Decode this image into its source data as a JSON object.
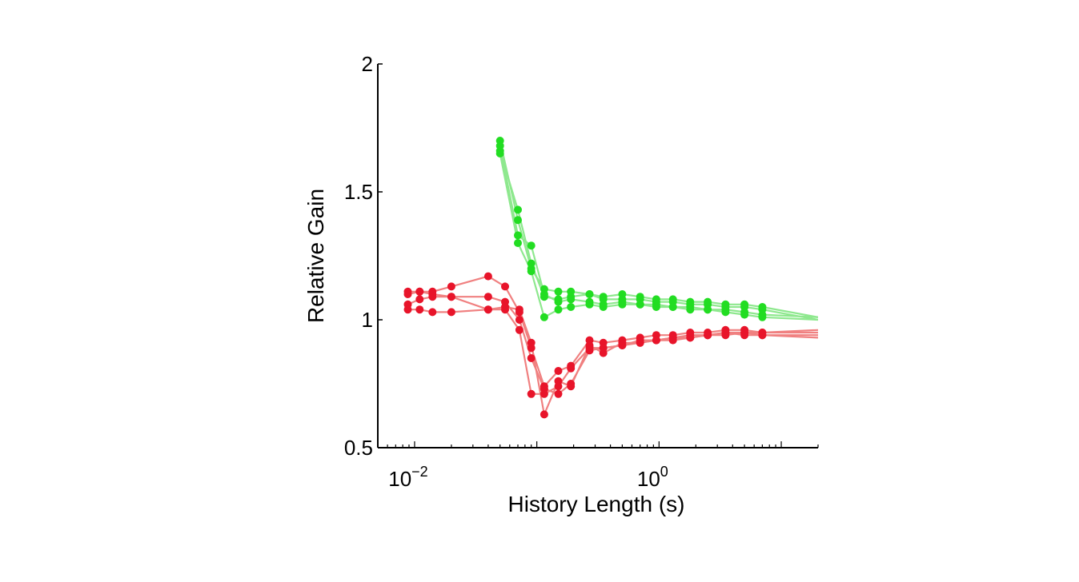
{
  "chart_data": {
    "type": "line",
    "xlabel": "History Length (s)",
    "ylabel": "Relative Gain",
    "xscale": "log",
    "xlim": [
      0.005,
      20
    ],
    "ylim": [
      0.5,
      2
    ],
    "yticks": [
      {
        "value": 0.5,
        "label": "0.5"
      },
      {
        "value": 1,
        "label": "1"
      },
      {
        "value": 1.5,
        "label": "1.5"
      },
      {
        "value": 2,
        "label": "2"
      }
    ],
    "xticks": [
      {
        "value": 0.01,
        "base": "10",
        "exp": "−2"
      },
      {
        "value": 1,
        "base": "10",
        "exp": "0"
      }
    ],
    "colors": {
      "red_line": "#f08080",
      "red_marker": "#e8142a",
      "green_line": "#8ee88e",
      "green_marker": "#22dd22"
    },
    "series": [
      {
        "group": "red",
        "x": [
          0.0088,
          0.011,
          0.014,
          0.02,
          0.04,
          0.055,
          0.072,
          0.09,
          0.115,
          0.15,
          0.19,
          0.27,
          0.35,
          0.5,
          0.7,
          0.95,
          1.3,
          1.8,
          2.5,
          3.5,
          5.0,
          7.0,
          20
        ],
        "y": [
          1.11,
          1.11,
          1.11,
          1.13,
          1.17,
          1.13,
          1.03,
          0.89,
          0.74,
          0.8,
          0.82,
          0.92,
          0.91,
          0.92,
          0.93,
          0.94,
          0.94,
          0.95,
          0.95,
          0.96,
          0.96,
          0.95,
          0.95
        ]
      },
      {
        "group": "red",
        "x": [
          0.0088,
          0.011,
          0.014,
          0.02,
          0.04,
          0.055,
          0.072,
          0.09,
          0.115,
          0.15,
          0.19,
          0.27,
          0.35,
          0.5,
          0.7,
          0.95,
          1.3,
          1.8,
          2.5,
          3.5,
          5.0,
          7.0,
          20
        ],
        "y": [
          1.1,
          1.11,
          1.1,
          1.09,
          1.09,
          1.07,
          1.0,
          0.85,
          0.73,
          0.71,
          0.75,
          0.88,
          0.89,
          0.9,
          0.91,
          0.92,
          0.93,
          0.93,
          0.94,
          0.95,
          0.95,
          0.94,
          0.94
        ]
      },
      {
        "group": "red",
        "x": [
          0.0088,
          0.011,
          0.014,
          0.02,
          0.04,
          0.055,
          0.072,
          0.09,
          0.115,
          0.15,
          0.19,
          0.27,
          0.35,
          0.5,
          0.7,
          0.95,
          1.3,
          1.8,
          2.5,
          3.5,
          5.0,
          7.0,
          20
        ],
        "y": [
          1.06,
          1.08,
          1.09,
          1.09,
          1.04,
          1.05,
          1.04,
          0.91,
          0.63,
          0.76,
          0.74,
          0.9,
          0.87,
          0.91,
          0.91,
          0.92,
          0.92,
          0.93,
          0.94,
          0.94,
          0.95,
          0.95,
          0.96
        ]
      },
      {
        "group": "red",
        "x": [
          0.0088,
          0.011,
          0.014,
          0.02,
          0.04,
          0.055,
          0.072,
          0.09,
          0.115,
          0.15,
          0.19,
          0.27,
          0.35,
          0.5,
          0.7,
          0.95,
          1.3,
          1.8,
          2.5,
          3.5,
          5.0,
          7.0,
          20
        ],
        "y": [
          1.04,
          1.04,
          1.03,
          1.03,
          1.04,
          1.04,
          0.96,
          0.71,
          0.71,
          0.74,
          0.81,
          0.89,
          0.89,
          0.9,
          0.92,
          0.92,
          0.93,
          0.94,
          0.94,
          0.95,
          0.94,
          0.94,
          0.93
        ]
      },
      {
        "group": "green",
        "x": [
          0.05,
          0.07,
          0.09,
          0.115,
          0.15,
          0.19,
          0.27,
          0.35,
          0.5,
          0.7,
          0.95,
          1.3,
          1.8,
          2.5,
          3.5,
          5.0,
          7.0,
          20
        ],
        "y": [
          1.66,
          1.43,
          1.22,
          1.09,
          1.08,
          1.09,
          1.1,
          1.09,
          1.1,
          1.09,
          1.08,
          1.08,
          1.07,
          1.07,
          1.06,
          1.06,
          1.05,
          1.01
        ]
      },
      {
        "group": "green",
        "x": [
          0.05,
          0.07,
          0.09,
          0.115,
          0.15,
          0.19,
          0.27,
          0.35,
          0.5,
          0.7,
          0.95,
          1.3,
          1.8,
          2.5,
          3.5,
          5.0,
          7.0,
          20
        ],
        "y": [
          1.7,
          1.39,
          1.2,
          1.12,
          1.11,
          1.11,
          1.1,
          1.08,
          1.08,
          1.08,
          1.07,
          1.07,
          1.06,
          1.06,
          1.05,
          1.05,
          1.04,
          1.0
        ]
      },
      {
        "group": "green",
        "x": [
          0.05,
          0.07,
          0.09,
          0.115,
          0.15,
          0.19,
          0.27,
          0.35,
          0.5,
          0.7,
          0.95,
          1.3,
          1.8,
          2.5,
          3.5,
          5.0,
          7.0,
          20
        ],
        "y": [
          1.68,
          1.33,
          1.29,
          1.1,
          1.07,
          1.08,
          1.07,
          1.06,
          1.07,
          1.06,
          1.06,
          1.05,
          1.05,
          1.04,
          1.04,
          1.03,
          1.02,
          1.01
        ]
      },
      {
        "group": "green",
        "x": [
          0.05,
          0.07,
          0.09,
          0.115,
          0.15,
          0.19,
          0.27,
          0.35,
          0.5,
          0.7,
          0.95,
          1.3,
          1.8,
          2.5,
          3.5,
          5.0,
          7.0,
          20
        ],
        "y": [
          1.65,
          1.3,
          1.19,
          1.01,
          1.04,
          1.05,
          1.06,
          1.05,
          1.06,
          1.06,
          1.05,
          1.05,
          1.04,
          1.04,
          1.03,
          1.02,
          1.01,
          1.0
        ]
      }
    ]
  }
}
